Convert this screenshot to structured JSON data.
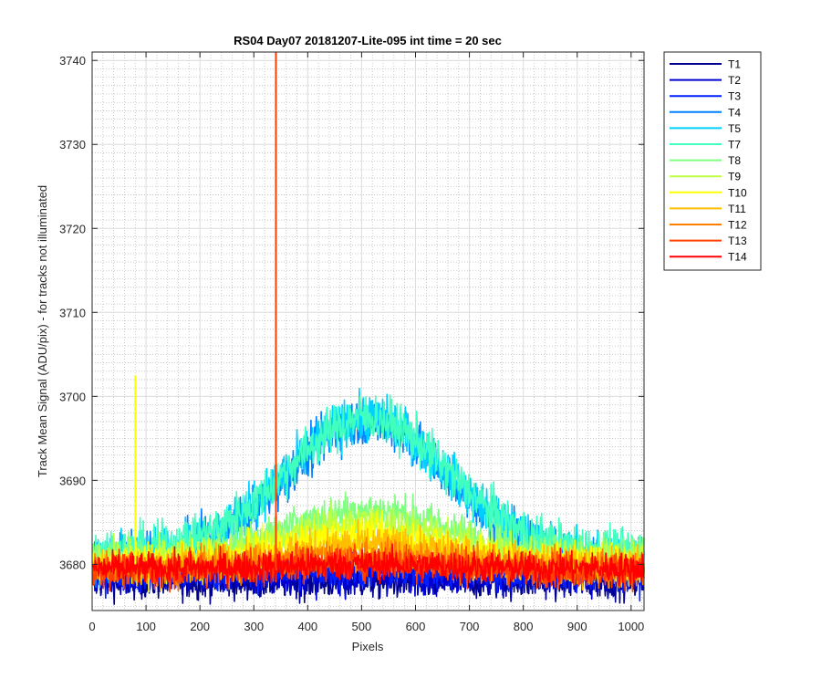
{
  "chart_data": {
    "type": "line",
    "title": "RS04 Day07 20181207-Lite-095 int time = 20 sec",
    "xlabel": "Pixels",
    "ylabel": "Track Mean Signal (ADU/pix) - for tracks not illuminated",
    "xlim": [
      0,
      1024
    ],
    "ylim": [
      3674.5,
      3741
    ],
    "grid": "major-solid-minor-dotted",
    "legend_position": "outside-top-right",
    "x_ticks": [
      "0",
      "100",
      "200",
      "300",
      "400",
      "500",
      "600",
      "700",
      "800",
      "900",
      "1000"
    ],
    "y_ticks": [
      "3680",
      "3690",
      "3700",
      "3710",
      "3720",
      "3730",
      "3740"
    ],
    "x_range_points": [
      1,
      1024
    ],
    "series": [
      {
        "name": "T1",
        "color": "#00008F",
        "baseline": 3678.0,
        "peak_add": 0.0,
        "noise": 1.5,
        "low_at_center": 3677.5
      },
      {
        "name": "T2",
        "color": "#0000CF",
        "baseline": 3678.5,
        "peak_add": 0.0,
        "noise": 1.5
      },
      {
        "name": "T3",
        "color": "#0020FF",
        "baseline": 3678.8,
        "peak_add": 0.5,
        "noise": 1.5
      },
      {
        "name": "T4",
        "color": "#0080FF",
        "baseline": 3680.5,
        "peak_add": 16.5,
        "noise": 2.0
      },
      {
        "name": "T5",
        "color": "#00CFFF",
        "baseline": 3681.0,
        "peak_add": 16.5,
        "noise": 2.0
      },
      {
        "name": "T7",
        "color": "#40FFBF",
        "baseline": 3681.5,
        "peak_add": 16.0,
        "noise": 2.0
      },
      {
        "name": "T8",
        "color": "#80FF80",
        "baseline": 3681.0,
        "peak_add": 5.5,
        "noise": 1.6
      },
      {
        "name": "T9",
        "color": "#BFFF40",
        "baseline": 3680.5,
        "peak_add": 4.5,
        "noise": 1.6
      },
      {
        "name": "T10",
        "color": "#FFFF00",
        "baseline": 3680.0,
        "peak_add": 3.5,
        "noise": 1.6,
        "spike": {
          "x": 80,
          "y": 3702.5
        }
      },
      {
        "name": "T11",
        "color": "#FFBF00",
        "baseline": 3679.8,
        "peak_add": 2.5,
        "noise": 1.6
      },
      {
        "name": "T12",
        "color": "#FF8000",
        "baseline": 3679.5,
        "peak_add": 1.5,
        "noise": 1.5
      },
      {
        "name": "T13",
        "color": "#FF4000",
        "baseline": 3679.3,
        "peak_add": 1.0,
        "noise": 1.5,
        "spike": {
          "x": 341,
          "y": 3741
        }
      },
      {
        "name": "T14",
        "color": "#FF0000",
        "baseline": 3679.5,
        "peak_add": 0.5,
        "noise": 1.3
      }
    ]
  }
}
